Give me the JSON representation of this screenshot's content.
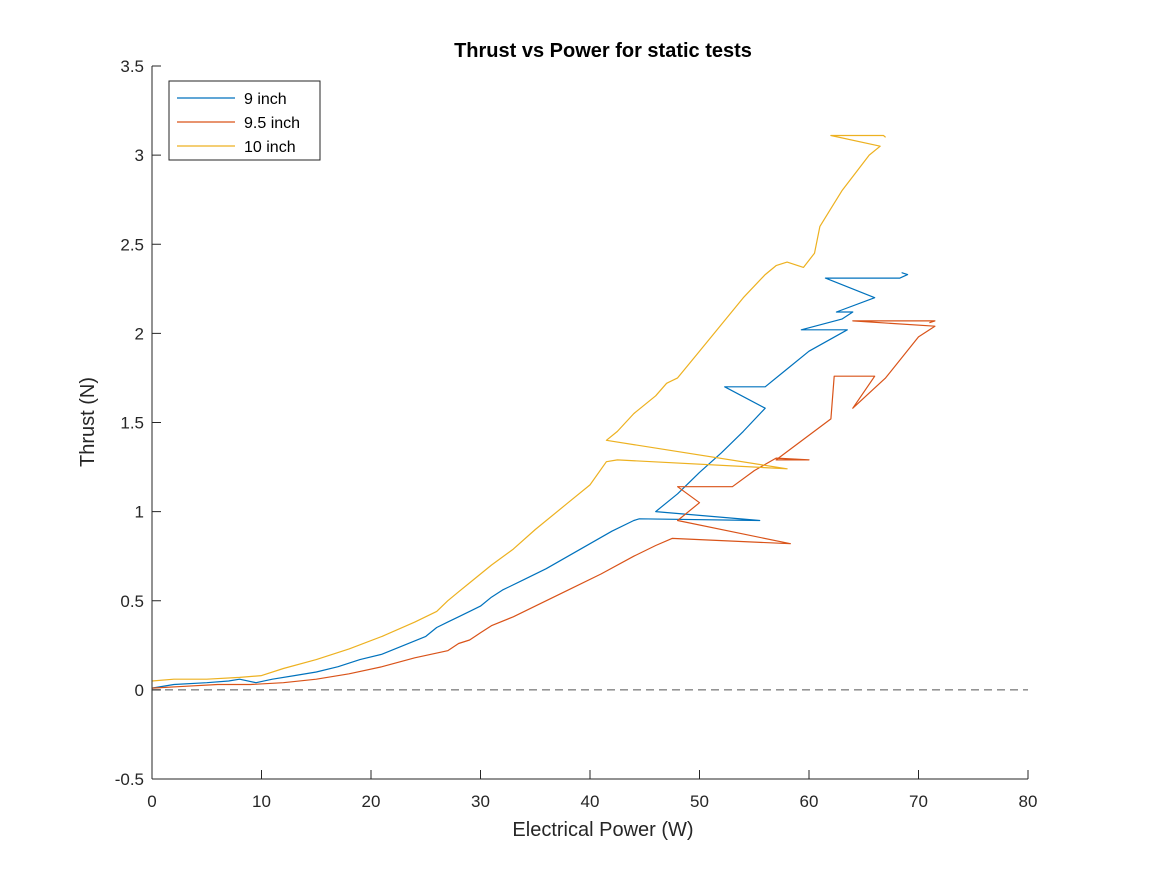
{
  "chart_data": {
    "type": "line",
    "title": "Thrust vs Power for static tests",
    "xlabel": "Electrical Power (W)",
    "ylabel": "Thrust (N)",
    "xlim": [
      0,
      80
    ],
    "ylim": [
      -0.5,
      3.5
    ],
    "xticks": [
      0,
      10,
      20,
      30,
      40,
      50,
      60,
      70,
      80
    ],
    "yticks": [
      -0.5,
      0,
      0.5,
      1,
      1.5,
      2,
      2.5,
      3,
      3.5
    ],
    "xtick_labels": [
      "0",
      "10",
      "20",
      "30",
      "40",
      "50",
      "60",
      "70",
      "80"
    ],
    "ytick_labels": [
      "-0.5",
      "0",
      "0.5",
      "1",
      "1.5",
      "2",
      "2.5",
      "3",
      "3.5"
    ],
    "legend_position": "top-left",
    "reference_line": {
      "y": 0,
      "style": "dashed",
      "color": "#555555"
    },
    "series": [
      {
        "name": "9 inch",
        "color": "#0072BD",
        "x": [
          0,
          2,
          5,
          7,
          8,
          9.5,
          11,
          13,
          15,
          17,
          19,
          21,
          23,
          25,
          26,
          27,
          28,
          29,
          30,
          31,
          32,
          34,
          36,
          38,
          40,
          42,
          44,
          44.5,
          55.5,
          46,
          48,
          50,
          52,
          54,
          56,
          52.3,
          56,
          58,
          60,
          63.5,
          59.3,
          63,
          64,
          62.5,
          66,
          61.5,
          68.3,
          69,
          68.5,
          69
        ],
        "y": [
          0.01,
          0.03,
          0.04,
          0.05,
          0.06,
          0.04,
          0.06,
          0.08,
          0.1,
          0.13,
          0.17,
          0.2,
          0.25,
          0.3,
          0.35,
          0.38,
          0.41,
          0.44,
          0.47,
          0.52,
          0.56,
          0.62,
          0.68,
          0.75,
          0.82,
          0.89,
          0.95,
          0.96,
          0.95,
          1.0,
          1.1,
          1.22,
          1.33,
          1.45,
          1.58,
          1.7,
          1.7,
          1.8,
          1.9,
          2.02,
          2.02,
          2.08,
          2.12,
          2.12,
          2.2,
          2.31,
          2.31,
          2.33,
          2.34,
          2.33
        ]
      },
      {
        "name": "9.5 inch",
        "color": "#D95319",
        "x": [
          0,
          3,
          6,
          9,
          12,
          15,
          18,
          21,
          24,
          27,
          28,
          29,
          30,
          31,
          33,
          35,
          38,
          41,
          44,
          46,
          47.5,
          58.3,
          48,
          50,
          48,
          53,
          55,
          57,
          60,
          57,
          62,
          62.3,
          66,
          64,
          67,
          70,
          71.5,
          64,
          71.5,
          71
        ],
        "y": [
          0.01,
          0.02,
          0.03,
          0.03,
          0.04,
          0.06,
          0.09,
          0.13,
          0.18,
          0.22,
          0.26,
          0.28,
          0.32,
          0.36,
          0.41,
          0.47,
          0.56,
          0.65,
          0.75,
          0.81,
          0.85,
          0.82,
          0.95,
          1.05,
          1.14,
          1.14,
          1.23,
          1.3,
          1.29,
          1.29,
          1.52,
          1.76,
          1.76,
          1.58,
          1.75,
          1.98,
          2.04,
          2.07,
          2.07,
          2.06
        ]
      },
      {
        "name": "10 inch",
        "color": "#EDB120",
        "x": [
          0,
          2,
          5,
          8,
          10,
          12,
          15,
          18,
          21,
          24,
          26,
          27,
          28,
          29,
          30,
          31,
          33,
          35,
          38,
          40,
          41.5,
          42.5,
          58,
          41.5,
          42.5,
          44,
          46,
          47,
          48,
          50,
          52,
          54,
          56,
          57,
          58,
          59.5,
          60.5,
          61,
          62,
          63,
          64.5,
          65.5,
          66.5,
          62,
          66.8,
          67
        ],
        "y": [
          0.05,
          0.06,
          0.06,
          0.07,
          0.08,
          0.12,
          0.17,
          0.23,
          0.3,
          0.38,
          0.44,
          0.5,
          0.55,
          0.6,
          0.65,
          0.7,
          0.79,
          0.9,
          1.05,
          1.15,
          1.28,
          1.29,
          1.24,
          1.4,
          1.45,
          1.55,
          1.65,
          1.72,
          1.75,
          1.9,
          2.05,
          2.2,
          2.33,
          2.38,
          2.4,
          2.37,
          2.45,
          2.6,
          2.7,
          2.8,
          2.92,
          3.0,
          3.05,
          3.11,
          3.11,
          3.1
        ]
      }
    ]
  }
}
